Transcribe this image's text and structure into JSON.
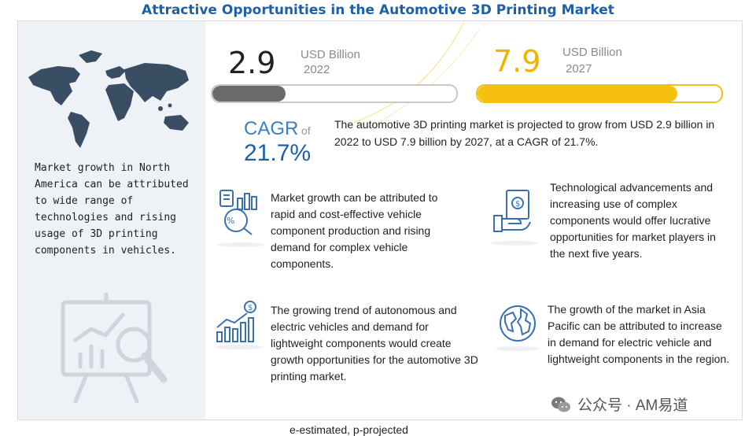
{
  "title": "Attractive Opportunities in the Automotive 3D Printing Market",
  "left_panel": {
    "text": "Market growth in North America can be attributed to wide range of technologies and rising usage of 3D printing components in vehicles.",
    "icons": [
      "world-map-icon",
      "analytics-presentation-icon"
    ]
  },
  "market_2022": {
    "value": "2.9",
    "unit": "USD Billion",
    "year": "2022",
    "bar_fill_fraction": 0.3,
    "bar_color": "#6b6b6b"
  },
  "market_2027": {
    "value": "7.9",
    "unit": "USD Billion",
    "year": "2027",
    "bar_fill_fraction": 0.82,
    "bar_color": "#f5c010"
  },
  "cagr": {
    "label": "CAGR",
    "of": "of",
    "value": "21.7%"
  },
  "summary": "The automotive 3D printing market is projected to grow from USD 2.9 billion in 2022 to USD 7.9 billion by 2027, at a CAGR of 21.7%.",
  "points": [
    {
      "icon": "component-production-icon",
      "text": "Market growth can be attributed to rapid and cost-effective vehicle component production and rising demand for complex vehicle components."
    },
    {
      "icon": "money-hand-icon",
      "text": "Technological advancements and increasing use of complex components would offer lucrative opportunities for market players in the next five years."
    },
    {
      "icon": "growth-chart-icon",
      "text": "The growing trend of autonomous and electric vehicles and demand for lightweight components would create growth opportunities for the automotive 3D printing market."
    },
    {
      "icon": "globe-icon",
      "text": "The growth of the market in Asia Pacific can be attributed to increase in demand for electric vehicle and lightweight components in the region."
    }
  ],
  "footnote": "e-estimated, p-projected",
  "watermark": "公众号 · AM易道",
  "colors": {
    "title": "#1f5fa8",
    "accent_yellow": "#f5c010",
    "panel": "#eef1f5",
    "cagr": "#3a7fc1"
  }
}
